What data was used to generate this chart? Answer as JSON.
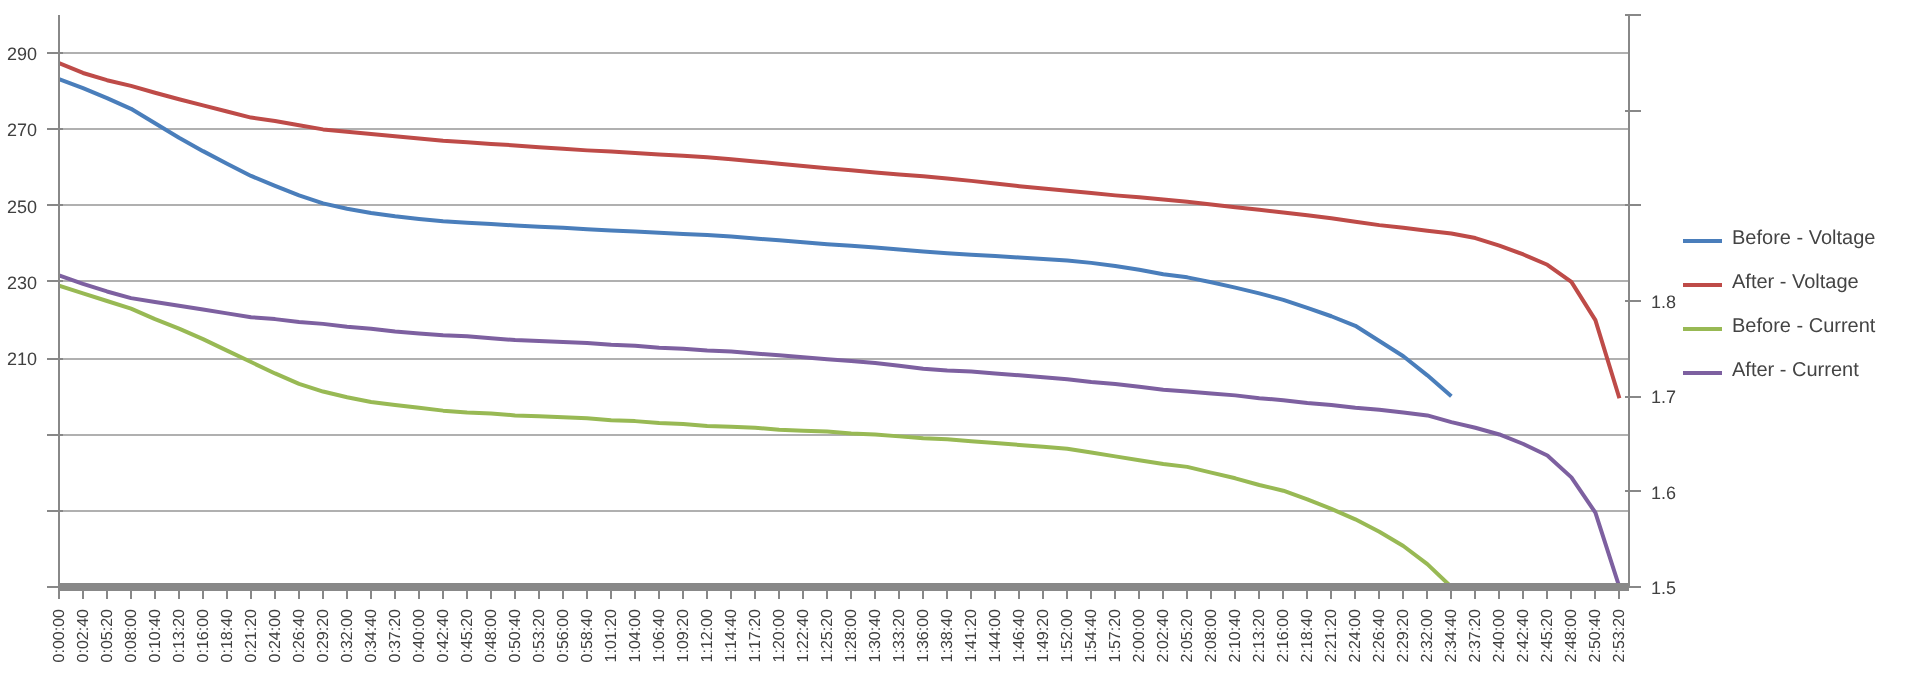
{
  "chart_data": {
    "type": "line",
    "categories": [
      "0:00:00",
      "0:02:40",
      "0:05:20",
      "0:08:00",
      "0:10:40",
      "0:13:20",
      "0:16:00",
      "0:18:40",
      "0:21:20",
      "0:24:00",
      "0:26:40",
      "0:29:20",
      "0:32:00",
      "0:34:40",
      "0:37:20",
      "0:40:00",
      "0:42:40",
      "0:45:20",
      "0:48:00",
      "0:50:40",
      "0:53:20",
      "0:56:00",
      "0:58:40",
      "1:01:20",
      "1:04:00",
      "1:06:40",
      "1:09:20",
      "1:12:00",
      "1:14:40",
      "1:17:20",
      "1:20:00",
      "1:22:40",
      "1:25:20",
      "1:28:00",
      "1:30:40",
      "1:33:20",
      "1:36:00",
      "1:38:40",
      "1:41:20",
      "1:44:00",
      "1:46:40",
      "1:49:20",
      "1:52:00",
      "1:54:40",
      "1:57:20",
      "2:00:00",
      "2:02:40",
      "2:05:20",
      "2:08:00",
      "2:10:40",
      "2:13:20",
      "2:16:00",
      "2:18:40",
      "2:21:20",
      "2:24:00",
      "2:26:40",
      "2:29:20",
      "2:32:00",
      "2:34:40",
      "2:37:20",
      "2:40:00",
      "2:42:40",
      "2:45:20",
      "2:48:00",
      "2:50:40",
      "2:53:20"
    ],
    "series": [
      {
        "name": "Before - Voltage",
        "color": "#4a7ebb",
        "values": [
          283.2,
          280.8,
          278.2,
          275.4,
          271.6,
          267.8,
          264.3,
          261,
          257.8,
          255.2,
          252.7,
          250.6,
          249.2,
          248.1,
          247.2,
          246.5,
          245.9,
          245.5,
          245.2,
          244.8,
          244.5,
          244.2,
          243.8,
          243.5,
          243.2,
          242.9,
          242.6,
          242.3,
          241.9,
          241.4,
          240.9,
          240.4,
          239.9,
          239.5,
          239,
          238.5,
          238,
          237.5,
          237.1,
          236.8,
          236.4,
          236,
          235.6,
          235,
          234.2,
          233.2,
          232,
          231.2,
          229.9,
          228.5,
          227,
          225.3,
          223.2,
          221,
          218.5,
          214.5,
          210.5,
          205.5,
          200,
          null,
          null,
          null,
          null,
          null,
          null,
          null
        ]
      },
      {
        "name": "After - Voltage",
        "color": "#be4b48",
        "values": [
          287.4,
          284.8,
          282.9,
          281.4,
          279.6,
          277.9,
          276.3,
          274.7,
          273.1,
          272.2,
          271.1,
          270,
          269.4,
          268.8,
          268.2,
          267.6,
          267,
          266.6,
          266.2,
          265.8,
          265.3,
          264.9,
          264.5,
          264.2,
          263.8,
          263.4,
          263.1,
          262.7,
          262.2,
          261.6,
          261,
          260.4,
          259.8,
          259.3,
          258.7,
          258.2,
          257.7,
          257.1,
          256.5,
          255.8,
          255.1,
          254.5,
          253.9,
          253.3,
          252.7,
          252.2,
          251.6,
          251,
          250.3,
          249.6,
          248.9,
          248.2,
          247.5,
          246.7,
          245.8,
          244.9,
          244.2,
          243.4,
          242.7,
          241.5,
          239.5,
          237.2,
          234.5,
          230,
          220,
          199.5
        ]
      },
      {
        "name": "Before - Current",
        "color": "#98b954",
        "axis": "y2",
        "values": [
          1.816,
          1.808,
          1.8,
          1.792,
          1.781,
          1.771,
          1.76,
          1.748,
          1.736,
          1.724,
          1.713,
          1.705,
          1.699,
          1.694,
          1.691,
          1.688,
          1.685,
          1.683,
          1.682,
          1.68,
          1.679,
          1.678,
          1.677,
          1.675,
          1.674,
          1.672,
          1.671,
          1.669,
          1.668,
          1.667,
          1.665,
          1.664,
          1.663,
          1.661,
          1.66,
          1.658,
          1.656,
          1.655,
          1.653,
          1.651,
          1.649,
          1.647,
          1.645,
          1.641,
          1.637,
          1.633,
          1.629,
          1.626,
          1.62,
          1.614,
          1.607,
          1.601,
          1.592,
          1.582,
          1.571,
          1.558,
          1.543,
          1.524,
          1.5,
          null,
          null,
          null,
          null,
          null,
          null,
          null
        ]
      },
      {
        "name": "After - Current",
        "color": "#7d60a0",
        "axis": "y2",
        "values": [
          1.827,
          1.818,
          1.81,
          1.803,
          1.799,
          1.795,
          1.791,
          1.787,
          1.783,
          1.781,
          1.778,
          1.776,
          1.773,
          1.771,
          1.768,
          1.766,
          1.764,
          1.763,
          1.761,
          1.759,
          1.758,
          1.757,
          1.756,
          1.754,
          1.753,
          1.751,
          1.75,
          1.748,
          1.747,
          1.745,
          1.743,
          1.741,
          1.739,
          1.737,
          1.735,
          1.732,
          1.729,
          1.727,
          1.726,
          1.724,
          1.722,
          1.72,
          1.718,
          1.715,
          1.713,
          1.71,
          1.707,
          1.705,
          1.703,
          1.701,
          1.698,
          1.696,
          1.693,
          1.691,
          1.688,
          1.686,
          1.683,
          1.68,
          1.673,
          1.667,
          1.66,
          1.65,
          1.638,
          1.615,
          1.578,
          1.5
        ]
      }
    ],
    "ylim": [
      150,
      300
    ],
    "yticks": [
      {
        "value": 150,
        "label": null
      },
      {
        "value": 170,
        "label": null
      },
      {
        "value": 190,
        "label": null
      },
      210,
      230,
      250,
      270,
      290
    ],
    "y2lim": [
      1.5,
      2.1
    ],
    "y2ticks": [
      1.5,
      1.6,
      1.7,
      1.8,
      {
        "value": 1.9,
        "label": null
      },
      {
        "value": 2.0,
        "label": null
      },
      {
        "value": 2.1,
        "label": null
      }
    ],
    "grid": "y",
    "legend": "right",
    "marker": "none",
    "line_style": "solid"
  }
}
